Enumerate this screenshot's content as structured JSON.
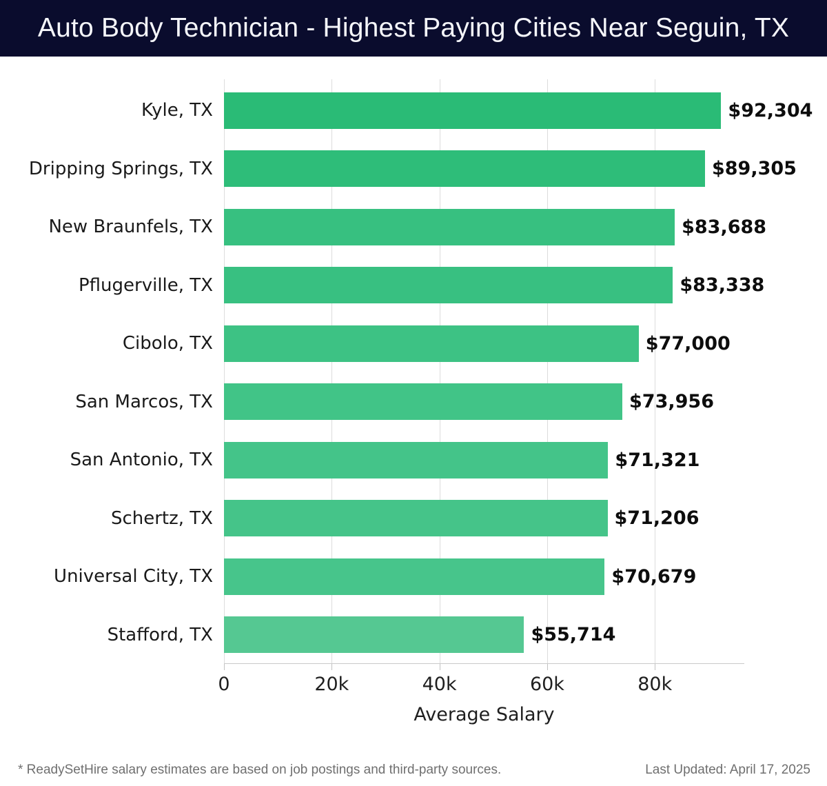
{
  "header": {
    "title": "Auto Body Technician - Highest Paying Cities Near Seguin, TX",
    "bg_color": "#0a0c2d",
    "text_color": "#f5f6fa"
  },
  "chart_data": {
    "type": "bar",
    "orientation": "horizontal",
    "title": "Auto Body Technician - Highest Paying Cities Near Seguin, TX",
    "xlabel": "Average Salary",
    "ylabel": "",
    "categories": [
      "Kyle, TX",
      "Dripping Springs, TX",
      "New Braunfels, TX",
      "Pflugerville, TX",
      "Cibolo, TX",
      "San Marcos, TX",
      "San Antonio, TX",
      "Schertz, TX",
      "Universal City, TX",
      "Stafford, TX"
    ],
    "values": [
      92304,
      89305,
      83688,
      83338,
      77000,
      73956,
      71321,
      71206,
      70679,
      55714
    ],
    "value_labels": [
      "$92,304",
      "$89,305",
      "$83,688",
      "$83,338",
      "$77,000",
      "$73,956",
      "$71,321",
      "$71,206",
      "$70,679",
      "$55,714"
    ],
    "bar_colors": [
      "#2abb76",
      "#2ebd79",
      "#37c080",
      "#38c081",
      "#3dc284",
      "#41c487",
      "#44c489",
      "#45c489",
      "#47c58b",
      "#55c892"
    ],
    "xlim": [
      0,
      96600
    ],
    "xticks": {
      "values": [
        0,
        20000,
        40000,
        60000,
        80000
      ],
      "labels": [
        "0",
        "20k",
        "40k",
        "60k",
        "80k"
      ]
    },
    "grid": "vertical-only",
    "gridline_color": "#dcdcdc",
    "legend": "none"
  },
  "footer": {
    "disclaimer": "* ReadySetHire salary estimates are based on job postings and third-party sources.",
    "last_updated": "Last Updated: April 17, 2025"
  }
}
